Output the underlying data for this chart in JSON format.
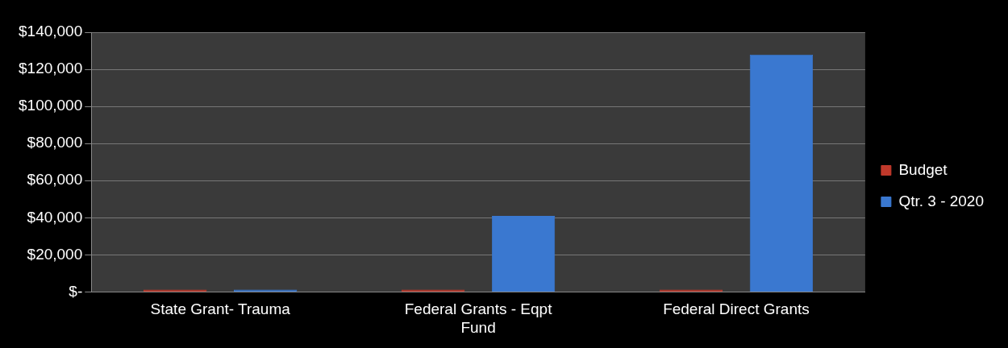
{
  "chart_data": {
    "type": "bar",
    "categories": [
      "State Grant- Trauma",
      "Federal Grants - Eqpt Fund",
      "Federal Direct Grants"
    ],
    "series": [
      {
        "name": "Budget",
        "color": "#c0392b",
        "values": [
          0,
          0,
          0
        ]
      },
      {
        "name": "Qtr. 3 - 2020",
        "color": "#3a78d0",
        "values": [
          0,
          41000,
          128000
        ]
      }
    ],
    "ylim": [
      0,
      140000
    ],
    "yticks": [
      {
        "value": 0,
        "label": "$-"
      },
      {
        "value": 20000,
        "label": "$20,000"
      },
      {
        "value": 40000,
        "label": "$40,000"
      },
      {
        "value": 60000,
        "label": "$60,000"
      },
      {
        "value": 80000,
        "label": "$80,000"
      },
      {
        "value": 100000,
        "label": "$100,000"
      },
      {
        "value": 120000,
        "label": "$120,000"
      },
      {
        "value": 140000,
        "label": "$140,000"
      }
    ],
    "grid": "y",
    "legend": "right"
  }
}
